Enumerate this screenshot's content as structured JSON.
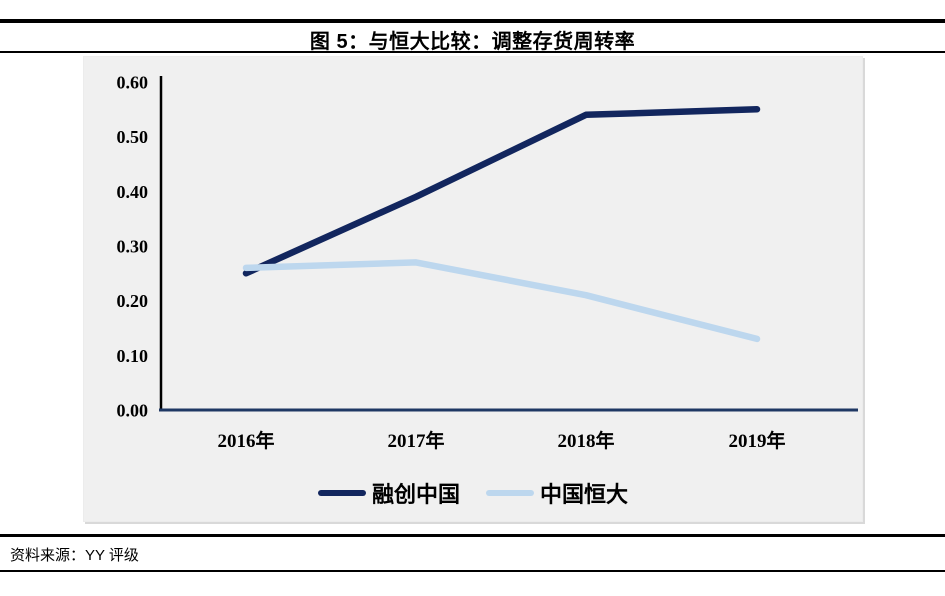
{
  "header": {
    "title": "图 5：与恒大比较：调整存货周转率"
  },
  "footer": {
    "source_label": "资料来源：YY 评级"
  },
  "chart_data": {
    "type": "line",
    "title": "图 5：与恒大比较：调整存货周转率",
    "categories": [
      "2016年",
      "2017年",
      "2018年",
      "2019年"
    ],
    "series": [
      {
        "name": "融创中国",
        "color": "#12265E",
        "values": [
          0.25,
          0.39,
          0.54,
          0.55
        ]
      },
      {
        "name": "中国恒大",
        "color": "#BDD7EE",
        "values": [
          0.26,
          0.27,
          0.21,
          0.13
        ]
      }
    ],
    "xlabel": "",
    "ylabel": "",
    "ylim": [
      0.0,
      0.6
    ],
    "ytick_step": 0.1,
    "ytick_labels": [
      "0.00",
      "0.10",
      "0.20",
      "0.30",
      "0.40",
      "0.50",
      "0.60"
    ],
    "grid": false,
    "legend_position": "bottom-center",
    "plot_bg": "#F0F0F0",
    "axis_color": "#000000",
    "baseline_color": "#1F3864"
  }
}
